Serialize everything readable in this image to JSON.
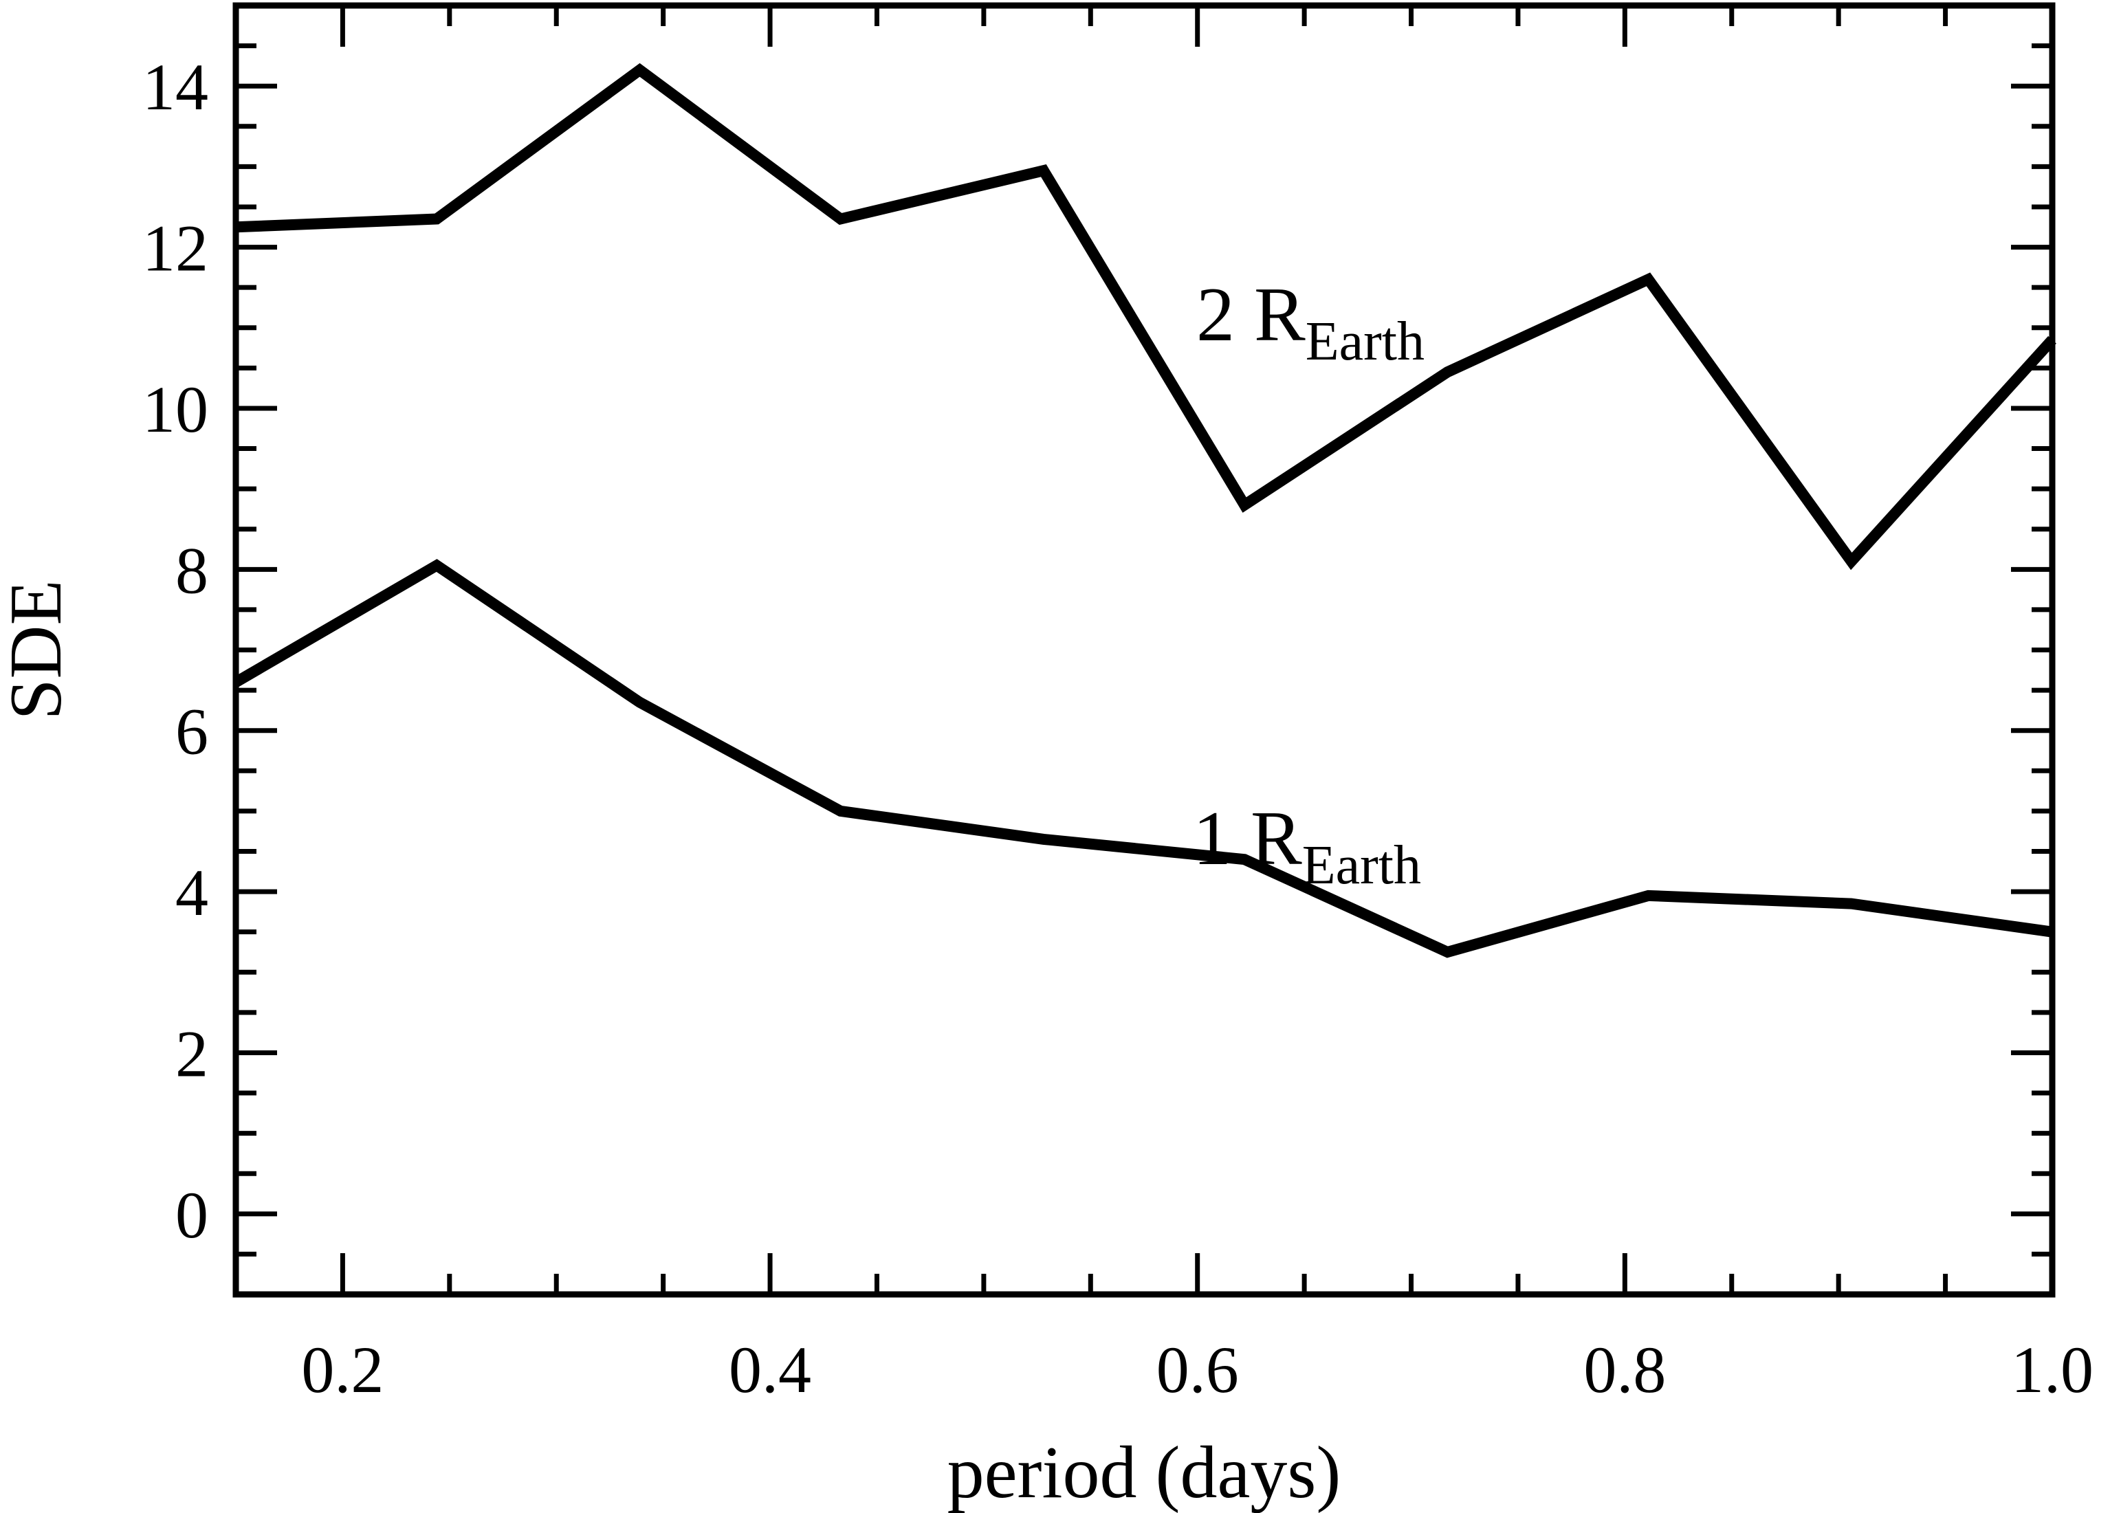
{
  "chart_data": {
    "type": "line",
    "title": "",
    "xlabel": "period (days)",
    "ylabel": "SDE",
    "xlim": [
      0.15,
      1.0
    ],
    "ylim": [
      -1.0,
      15.0
    ],
    "xticks": [
      0.2,
      0.4,
      0.6,
      0.8,
      1.0
    ],
    "xtick_labels": [
      "0.2",
      "0.4",
      "0.6",
      "0.8",
      "1.0"
    ],
    "yticks": [
      0,
      2,
      4,
      6,
      8,
      10,
      12,
      14
    ],
    "ytick_labels": [
      "0",
      "2",
      "4",
      "6",
      "8",
      "10",
      "12",
      "14"
    ],
    "grid": false,
    "legend": "none",
    "line_color": "#000000",
    "x": [
      0.15,
      0.244,
      0.339,
      0.433,
      0.528,
      0.622,
      0.717,
      0.811,
      0.906,
      1.0
    ],
    "series": [
      {
        "label_main": "2 R",
        "label_sub": "Earth",
        "values": [
          12.25,
          12.35,
          14.2,
          12.35,
          12.95,
          8.8,
          10.45,
          11.6,
          8.1,
          10.85
        ]
      },
      {
        "label_main": "1 R",
        "label_sub": "Earth",
        "values": [
          6.6,
          8.05,
          6.35,
          5.0,
          4.65,
          4.4,
          3.25,
          3.95,
          3.85,
          3.5
        ]
      }
    ]
  }
}
